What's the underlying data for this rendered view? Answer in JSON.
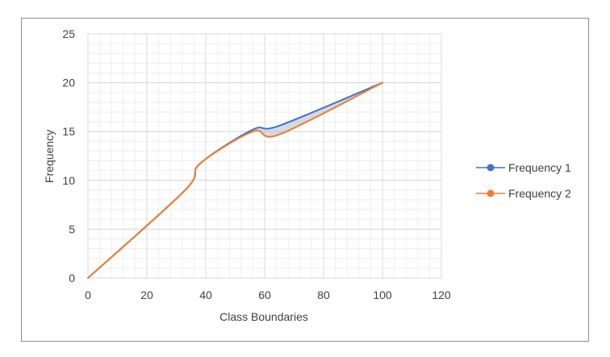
{
  "chart_data": {
    "type": "line",
    "smooth": true,
    "xlabel": "Class Boundaries",
    "ylabel": "Frequency",
    "xlim": [
      0,
      120
    ],
    "ylim": [
      0,
      25
    ],
    "x_major_step": 20,
    "y_major_step": 5,
    "x_minor_step": 4,
    "y_minor_step": 1,
    "grid": true,
    "legend_position": "right",
    "shaded_between_series": true,
    "shade_color": "#b4bccd",
    "frame_color": "#8c8c8c",
    "xticks": [
      "0",
      "20",
      "40",
      "60",
      "80",
      "100",
      "120"
    ],
    "yticks": [
      "0",
      "5",
      "10",
      "15",
      "20",
      "25"
    ],
    "series": [
      {
        "name": "Frequency 1",
        "color": "#4472c4",
        "x": [
          0,
          33,
          38,
          56,
          65,
          100
        ],
        "y": [
          0,
          9,
          11.7,
          15.2,
          15.6,
          20
        ]
      },
      {
        "name": "Frequency 2",
        "color": "#ed7d31",
        "x": [
          0,
          33,
          38,
          56,
          65,
          100
        ],
        "y": [
          0,
          9,
          11.7,
          15,
          14.7,
          20
        ]
      }
    ]
  }
}
